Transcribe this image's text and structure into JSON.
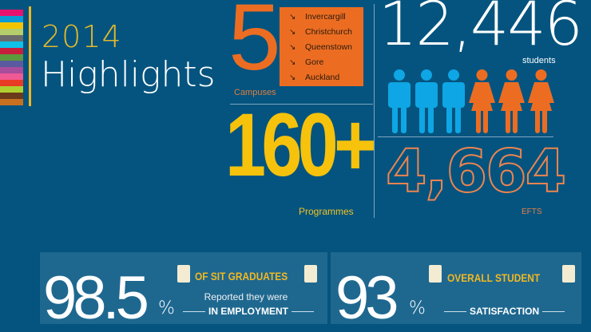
{
  "colors": {
    "background": "#04547f",
    "orange": "#ec6d22",
    "yellow": "#f6c20c",
    "blue": "#0ea6e4"
  },
  "color_bars": [
    "#e8126e",
    "#0a9bd6",
    "#f5c400",
    "#b5cd6a",
    "#6b6b6b",
    "#10c0e8",
    "#c8203c",
    "#5c9a3c",
    "#5a5aa0",
    "#a84c9c",
    "#f05a94",
    "#e83c24",
    "#b0d030",
    "#6a3a1a",
    "#c87020"
  ],
  "title": {
    "year": "2014",
    "text": "Highlights"
  },
  "campuses": {
    "count": "5",
    "label": "Campuses",
    "arrow": "↘",
    "list": [
      "Invercargill",
      "Christchurch",
      "Queenstown",
      "Gore",
      "Auckland"
    ]
  },
  "students": {
    "count": "12,446",
    "label": "students",
    "male_icons": 3,
    "female_icons": 3
  },
  "programmes": {
    "count": "160+",
    "label": "Programmes"
  },
  "efts": {
    "count": "4,664",
    "label": "EFTS"
  },
  "stats": [
    {
      "value": "98.5",
      "unit": "%",
      "heading": "OF SIT GRADUATES",
      "line1": "Reported they were",
      "line2": "IN EMPLOYMENT"
    },
    {
      "value": "93",
      "unit": "%",
      "heading": "OVERALL STUDENT",
      "line2": "SATISFACTION"
    }
  ]
}
